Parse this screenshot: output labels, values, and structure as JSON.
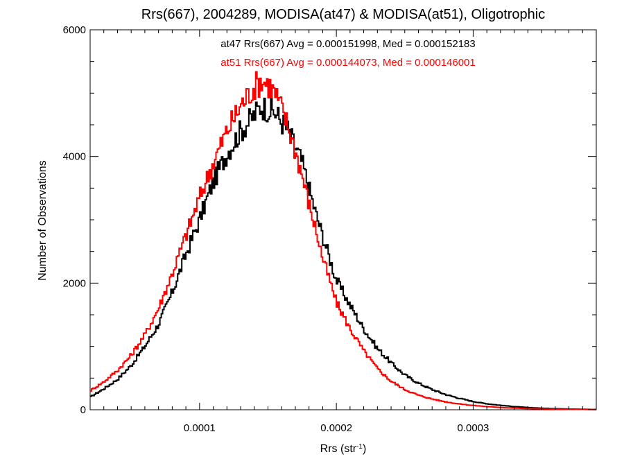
{
  "chart_data": {
    "type": "line",
    "title": "Rrs(667), 2004289, MODISA(at47) & MODISA(at51), Oligotrophic",
    "xlabel_main": "Rrs (str",
    "xlabel_sup": "-1",
    "xlabel_close": ")",
    "ylabel": "Number of Observations",
    "xlim": [
      2e-05,
      0.00039
    ],
    "ylim": [
      0,
      6000
    ],
    "x_ticks": [
      0.0001,
      0.0002,
      0.0003
    ],
    "x_tick_labels": [
      "0.0001",
      "0.0002",
      "0.0003"
    ],
    "y_ticks": [
      0,
      2000,
      4000,
      6000
    ],
    "y_tick_labels": [
      "0",
      "2000",
      "4000",
      "6000"
    ],
    "grid": false,
    "stats": [
      {
        "text": "at47 Rrs(667) Avg = 0.000151998, Med = 0.000152183",
        "color": "#000000"
      },
      {
        "text": "at51 Rrs(667) Avg = 0.000144073, Med = 0.000146001",
        "color": "#ff0000"
      }
    ],
    "series": [
      {
        "color": "#000000",
        "step": "hist",
        "points": [
          [
            2e-05,
            200
          ],
          [
            3e-05,
            330
          ],
          [
            4e-05,
            480
          ],
          [
            5e-05,
            700
          ],
          [
            6e-05,
            1000
          ],
          [
            7e-05,
            1350
          ],
          [
            8e-05,
            1850
          ],
          [
            9e-05,
            2450
          ],
          [
            0.0001,
            3000
          ],
          [
            0.00011,
            3600
          ],
          [
            0.00012,
            4050
          ],
          [
            0.00013,
            4400
          ],
          [
            0.00014,
            4650
          ],
          [
            0.000145,
            4800
          ],
          [
            0.00015,
            4750
          ],
          [
            0.000155,
            4700
          ],
          [
            0.00016,
            4550
          ],
          [
            0.000165,
            4400
          ],
          [
            0.00017,
            4150
          ],
          [
            0.000175,
            3900
          ],
          [
            0.00018,
            3500
          ],
          [
            0.000185,
            3100
          ],
          [
            0.00019,
            2750
          ],
          [
            0.000195,
            2400
          ],
          [
            0.0002,
            2050
          ],
          [
            0.00021,
            1650
          ],
          [
            0.00022,
            1280
          ],
          [
            0.00023,
            970
          ],
          [
            0.00024,
            740
          ],
          [
            0.00025,
            550
          ],
          [
            0.00026,
            420
          ],
          [
            0.00027,
            320
          ],
          [
            0.00028,
            240
          ],
          [
            0.00029,
            180
          ],
          [
            0.0003,
            130
          ],
          [
            0.00031,
            95
          ],
          [
            0.00032,
            70
          ],
          [
            0.00033,
            50
          ],
          [
            0.00034,
            35
          ],
          [
            0.00035,
            25
          ],
          [
            0.00036,
            18
          ],
          [
            0.00037,
            12
          ],
          [
            0.00038,
            8
          ],
          [
            0.00039,
            5
          ]
        ]
      },
      {
        "color": "#ff0000",
        "step": "hist",
        "points": [
          [
            2e-05,
            300
          ],
          [
            3e-05,
            440
          ],
          [
            4e-05,
            620
          ],
          [
            5e-05,
            860
          ],
          [
            6e-05,
            1180
          ],
          [
            7e-05,
            1600
          ],
          [
            8e-05,
            2150
          ],
          [
            9e-05,
            2750
          ],
          [
            0.0001,
            3350
          ],
          [
            0.00011,
            3900
          ],
          [
            0.00012,
            4400
          ],
          [
            0.00013,
            4800
          ],
          [
            0.00014,
            5100
          ],
          [
            0.000145,
            5200
          ],
          [
            0.00015,
            5150
          ],
          [
            0.000155,
            5000
          ],
          [
            0.00016,
            4750
          ],
          [
            0.000165,
            4450
          ],
          [
            0.00017,
            4100
          ],
          [
            0.000175,
            3700
          ],
          [
            0.00018,
            3250
          ],
          [
            0.000185,
            2850
          ],
          [
            0.00019,
            2400
          ],
          [
            0.000195,
            2050
          ],
          [
            0.0002,
            1700
          ],
          [
            0.00021,
            1280
          ],
          [
            0.00022,
            930
          ],
          [
            0.00023,
            650
          ],
          [
            0.00024,
            450
          ],
          [
            0.00025,
            320
          ],
          [
            0.00026,
            230
          ],
          [
            0.00027,
            170
          ],
          [
            0.00028,
            125
          ],
          [
            0.00029,
            92
          ],
          [
            0.0003,
            68
          ],
          [
            0.00031,
            50
          ],
          [
            0.00032,
            36
          ],
          [
            0.00033,
            26
          ],
          [
            0.00034,
            19
          ],
          [
            0.00035,
            14
          ],
          [
            0.00036,
            10
          ],
          [
            0.00037,
            7
          ],
          [
            0.00038,
            5
          ],
          [
            0.00039,
            3
          ]
        ]
      }
    ]
  }
}
